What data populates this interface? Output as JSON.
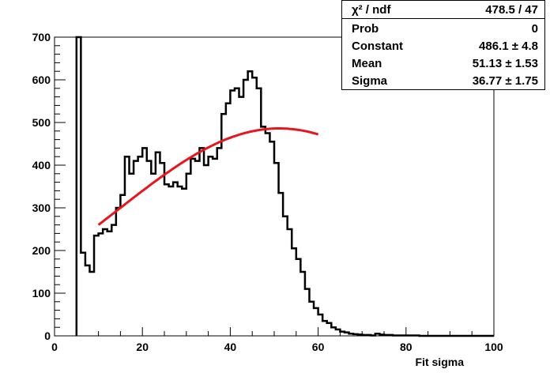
{
  "chart_data": {
    "type": "histogram",
    "xlabel": "Fit sigma",
    "ylabel": "",
    "xlim": [
      0,
      100
    ],
    "ylim": [
      0,
      700
    ],
    "xticks": [
      "0",
      "20",
      "40",
      "60",
      "80",
      "100"
    ],
    "yticks": [
      "0",
      "100",
      "200",
      "300",
      "400",
      "500",
      "600",
      "700"
    ],
    "bin_width": 1,
    "bin_edges_start": 5,
    "histogram_values": [
      700,
      195,
      165,
      150,
      235,
      240,
      250,
      245,
      260,
      300,
      330,
      420,
      380,
      410,
      420,
      440,
      410,
      380,
      430,
      405,
      355,
      350,
      360,
      350,
      345,
      380,
      415,
      410,
      440,
      400,
      420,
      415,
      440,
      520,
      545,
      575,
      580,
      560,
      600,
      620,
      605,
      580,
      490,
      475,
      455,
      405,
      335,
      280,
      250,
      205,
      180,
      150,
      110,
      80,
      65,
      50,
      35,
      30,
      20,
      15,
      10,
      8,
      5,
      4,
      3,
      2,
      2,
      1,
      5,
      3,
      2,
      2,
      1,
      1,
      1,
      1,
      1,
      1,
      0,
      0,
      0,
      0,
      0,
      0,
      0,
      0,
      0,
      0,
      0,
      0,
      0,
      0,
      0,
      0,
      0
    ],
    "fit": {
      "name": "gaus",
      "color": "#e8151b",
      "constant": 486.1,
      "mean": 51.13,
      "sigma": 36.77,
      "x_range": [
        10,
        60
      ]
    },
    "grid": false,
    "line_color": "#000000"
  },
  "stats_box": {
    "rows": [
      {
        "label": "χ² / ndf",
        "value": "478.5 / 47"
      },
      {
        "label": "Prob",
        "value": "0"
      },
      {
        "label": "Constant",
        "value": "486.1 ± 4.8"
      },
      {
        "label": "Mean",
        "value": "51.13 ± 1.53"
      },
      {
        "label": "Sigma",
        "value": "36.77 ± 1.75"
      }
    ]
  }
}
